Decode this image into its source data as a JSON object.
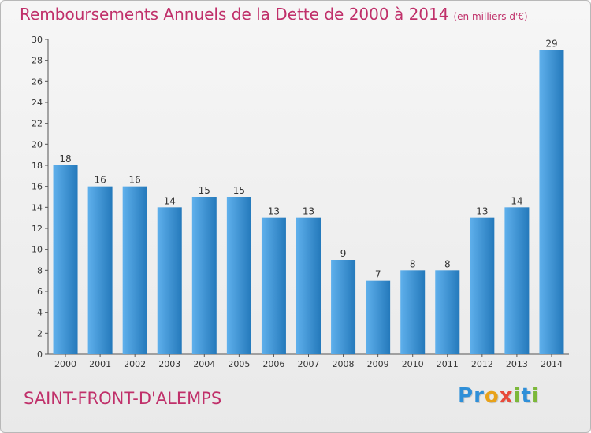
{
  "chart_data": {
    "type": "bar",
    "title": "Remboursements Annuels de la Dette de 2000 à 2014",
    "subtitle": "(en milliers d'€)",
    "categories": [
      "2000",
      "2001",
      "2002",
      "2003",
      "2004",
      "2005",
      "2006",
      "2007",
      "2008",
      "2009",
      "2010",
      "2011",
      "2012",
      "2013",
      "2014"
    ],
    "values": [
      18,
      16,
      16,
      14,
      15,
      15,
      13,
      13,
      9,
      7,
      8,
      8,
      13,
      14,
      29
    ],
    "ylim": [
      0,
      30
    ],
    "yticks": [
      0,
      2,
      4,
      6,
      8,
      10,
      12,
      14,
      16,
      18,
      20,
      22,
      24,
      26,
      28,
      30
    ],
    "xlabel": "",
    "ylabel": "",
    "grid": false,
    "colors": {
      "bar_light": "#5fb0ec",
      "bar_dark": "#2479bb",
      "title": "#c0306a"
    }
  },
  "footer": {
    "place": "SAINT-FRONT-D'ALEMPS",
    "logo_letters": [
      {
        "ch": "P",
        "color": "#2f8fd8"
      },
      {
        "ch": "r",
        "color": "#2f8fd8"
      },
      {
        "ch": "o",
        "color": "#e8a21a"
      },
      {
        "ch": "x",
        "color": "#e84a3a"
      },
      {
        "ch": "i",
        "color": "#7cb83a"
      },
      {
        "ch": "t",
        "color": "#2f8fd8"
      },
      {
        "ch": "i",
        "color": "#7cb83a"
      }
    ]
  }
}
